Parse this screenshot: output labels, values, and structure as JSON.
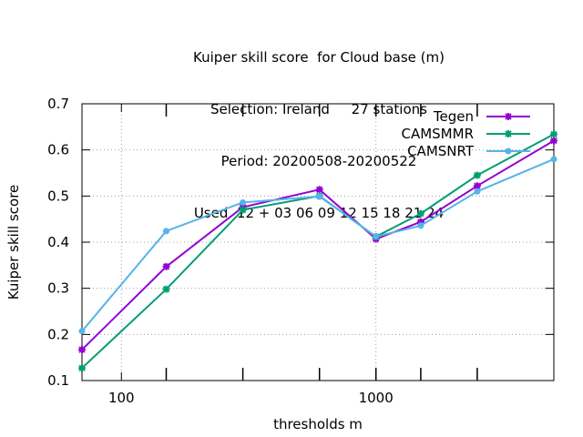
{
  "chart_data": {
    "type": "line",
    "title_lines": [
      "Kuiper skill score  for Cloud base (m)",
      "Selection: Ireland     27 stations",
      "Period: 20200508-20200522",
      "Used  12 + 03 06 09 12 15 18 21 24"
    ],
    "xlabel": "thresholds m",
    "ylabel": "Kuiper skill score",
    "x_scale": "log",
    "xlim": [
      70,
      5000
    ],
    "ylim": [
      0.1,
      0.7
    ],
    "x_tick_labels": [
      "100",
      "1000"
    ],
    "y_tick_labels": [
      "0.1",
      "0.2",
      "0.3",
      "0.4",
      "0.5",
      "0.6",
      "0.7"
    ],
    "grid": true,
    "legend_position": "top-right",
    "x": [
      70,
      150,
      300,
      600,
      1000,
      1500,
      2500,
      5000
    ],
    "series": [
      {
        "name": "Tegen",
        "color": "#9400d3",
        "marker": "star",
        "values": [
          0.167,
          0.347,
          0.476,
          0.514,
          0.407,
          0.444,
          0.522,
          0.62
        ]
      },
      {
        "name": "CAMSMMR",
        "color": "#009e73",
        "marker": "star",
        "values": [
          0.127,
          0.298,
          0.47,
          0.5,
          0.412,
          0.462,
          0.545,
          0.634
        ]
      },
      {
        "name": "CAMSNRT",
        "color": "#56b4e9",
        "marker": "circle",
        "values": [
          0.207,
          0.424,
          0.486,
          0.499,
          0.412,
          0.436,
          0.51,
          0.58
        ]
      }
    ]
  }
}
